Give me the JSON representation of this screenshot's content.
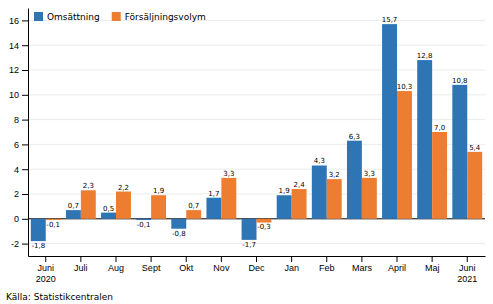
{
  "chart_data": {
    "type": "bar",
    "categories": [
      "Juni\n2020",
      "Juli",
      "Aug",
      "Sept",
      "Okt",
      "Nov",
      "Dec",
      "Jan",
      "Feb",
      "Mars",
      "April",
      "Maj",
      "Juni\n2021"
    ],
    "series": [
      {
        "name": "Omsättning",
        "color": "#2E75B6",
        "values": [
          -1.8,
          0.7,
          0.5,
          -0.1,
          -0.8,
          1.7,
          -1.7,
          1.9,
          4.3,
          6.3,
          15.7,
          12.8,
          10.8
        ],
        "value_labels": [
          "-1,8",
          "0,7",
          "0,5",
          "-0,1",
          "-0,8",
          "1,7",
          "-1,7",
          "1,9",
          "4,3",
          "6,3",
          "15,7",
          "12,8",
          "10,8"
        ]
      },
      {
        "name": "Försäljningsvolym",
        "color": "#ED7D31",
        "values": [
          -0.1,
          2.3,
          2.2,
          1.9,
          0.7,
          3.3,
          -0.3,
          2.4,
          3.2,
          3.3,
          10.3,
          7.0,
          5.4
        ],
        "value_labels": [
          "-0,1",
          "2,3",
          "2,2",
          "1,9",
          "0,7",
          "3,3",
          "-0,3",
          "2,4",
          "3,2",
          "3,3",
          "10,3",
          "7,0",
          "5,4"
        ]
      }
    ],
    "ylim": [
      -3,
      17
    ],
    "yticks": [
      -2,
      0,
      2,
      4,
      6,
      8,
      10,
      12,
      14,
      16
    ],
    "grid": true,
    "legend": "upper left",
    "data_labels": true,
    "annotations": [
      "Källa: Statistikcentralen"
    ]
  }
}
